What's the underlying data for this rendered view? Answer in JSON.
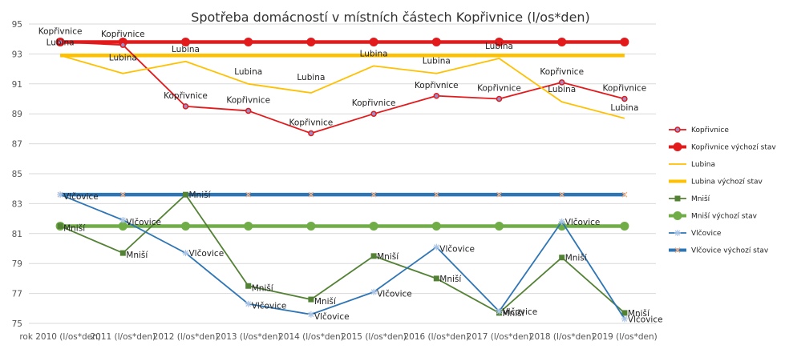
{
  "chart_data": {
    "type": "line",
    "title": "Spotřeba domácností v místních částech Kopřivnice (l/os*den)",
    "xlabel": "",
    "ylabel": "",
    "categories": [
      "rok 2010 (l/os*den)",
      "2011 (l/os*den)",
      "2012 (l/os*den)",
      "2013 (l/os*den)",
      "2014 (l/os*den)",
      "2015 (l/os*den)",
      "2016 (l/os*den)",
      "2017 (l/os*den)",
      "2018 (l/os*den)",
      "2019 (l/os*den)"
    ],
    "ylim": [
      75,
      95
    ],
    "yticks": [
      "75",
      "77",
      "79",
      "81",
      "83",
      "85",
      "87",
      "89",
      "91",
      "93",
      "95"
    ],
    "grid": true,
    "legend_position": "right",
    "series": [
      {
        "name": "Kopřivnice",
        "color": "#e31a1c",
        "marker": "circle",
        "labels": true,
        "values": [
          93.8,
          93.6,
          89.5,
          89.2,
          87.7,
          89.0,
          90.2,
          90.0,
          91.1,
          90.0
        ]
      },
      {
        "name": "Kopřivnice výchozí stav",
        "color": "#e31a1c",
        "marker": "circle",
        "baseline": true,
        "labels": false,
        "values": [
          93.8,
          93.8,
          93.8,
          93.8,
          93.8,
          93.8,
          93.8,
          93.8,
          93.8,
          93.8
        ]
      },
      {
        "name": "Lubina",
        "color": "#ffc000",
        "marker": "none",
        "labels": true,
        "values": [
          92.9,
          91.7,
          92.5,
          91.0,
          90.4,
          92.2,
          91.7,
          92.7,
          89.8,
          88.7
        ]
      },
      {
        "name": "Lubina výchozí stav",
        "color": "#ffc000",
        "marker": "none",
        "baseline": true,
        "labels": false,
        "values": [
          92.9,
          92.9,
          92.9,
          92.9,
          92.9,
          92.9,
          92.9,
          92.9,
          92.9,
          92.9
        ]
      },
      {
        "name": "Mniší",
        "color": "#548235",
        "marker": "square",
        "labels": true,
        "values": [
          81.5,
          79.7,
          83.6,
          77.5,
          76.6,
          79.5,
          78.0,
          75.7,
          79.4,
          75.7
        ]
      },
      {
        "name": "Mniší výchozí stav",
        "color": "#70ad47",
        "marker": "circle",
        "baseline": true,
        "labels": false,
        "values": [
          81.5,
          81.5,
          81.5,
          81.5,
          81.5,
          81.5,
          81.5,
          81.5,
          81.5,
          81.5
        ]
      },
      {
        "name": "Vlčovice",
        "color": "#2e75b6",
        "marker": "star",
        "labels": true,
        "values": [
          83.6,
          81.9,
          79.7,
          76.3,
          75.6,
          77.1,
          80.1,
          75.8,
          81.8,
          75.3
        ]
      },
      {
        "name": "Vlčovice výchozí stav",
        "color": "#2e75b6",
        "marker": "x",
        "baseline": true,
        "labels": false,
        "values": [
          83.6,
          83.6,
          83.6,
          83.6,
          83.6,
          83.6,
          83.6,
          83.6,
          83.6,
          83.6
        ]
      }
    ]
  }
}
